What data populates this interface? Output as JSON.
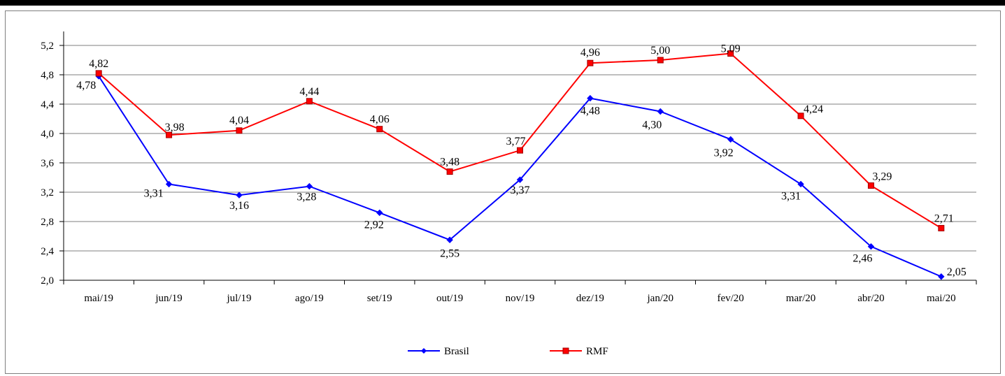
{
  "chart_data": {
    "type": "line",
    "categories": [
      "mai/19",
      "jun/19",
      "jul/19",
      "ago/19",
      "set/19",
      "out/19",
      "nov/19",
      "dez/19",
      "jan/20",
      "fev/20",
      "mar/20",
      "abr/20",
      "mai/20"
    ],
    "series": [
      {
        "name": "Brasil",
        "color": "#0000ff",
        "marker": "diamond",
        "values": [
          4.78,
          3.31,
          3.16,
          3.28,
          2.92,
          2.55,
          3.37,
          4.48,
          4.3,
          3.92,
          3.31,
          2.46,
          2.05
        ],
        "labels": [
          "4,78",
          "3,31",
          "3,16",
          "3,28",
          "2,92",
          "2,55",
          "3,37",
          "4,48",
          "4,30",
          "3,92",
          "3,31",
          "2,46",
          "2,05"
        ]
      },
      {
        "name": "RMF",
        "color": "#ff0000",
        "marker": "square",
        "values": [
          4.82,
          3.98,
          4.04,
          4.44,
          4.06,
          3.48,
          3.77,
          4.96,
          5.0,
          5.09,
          4.24,
          3.29,
          2.71
        ],
        "labels": [
          "4,82",
          "3,98",
          "4,04",
          "4,44",
          "4,06",
          "3,48",
          "3,77",
          "4,96",
          "5,00",
          "5,09",
          "4,24",
          "3,29",
          "2,71"
        ]
      }
    ],
    "yticks": [
      2.0,
      2.4,
      2.8,
      3.2,
      3.6,
      4.0,
      4.4,
      4.8,
      5.2
    ],
    "ytick_labels": [
      "2,0",
      "2,4",
      "2,8",
      "3,2",
      "3,6",
      "4,0",
      "4,4",
      "4,8",
      "5,2"
    ],
    "ylim": [
      2.0,
      5.2
    ],
    "grid": true,
    "legend": "bottom-center"
  },
  "colors": {
    "frame": "#7f7f7f",
    "grid": "#7f7f7f",
    "axis": "#000000",
    "top_bar": "#000000"
  }
}
